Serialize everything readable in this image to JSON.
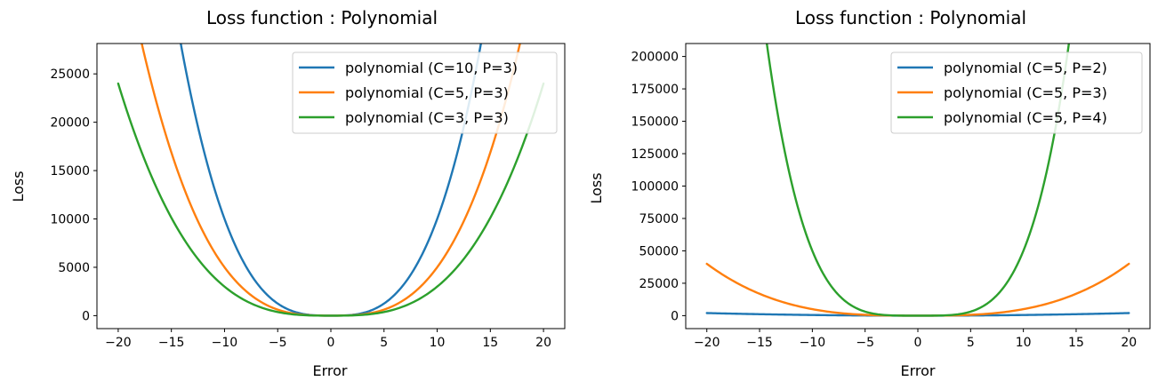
{
  "colors": {
    "blue": "#1f77b4",
    "orange": "#ff7f0e",
    "green": "#2ca02c"
  },
  "chart_data": [
    {
      "type": "line",
      "title": "Loss function : Polynomial",
      "xlabel": "Error",
      "ylabel": "Loss",
      "xlim": [
        -22,
        22
      ],
      "ylim": [
        -1340,
        28140
      ],
      "xticks": [
        -20,
        -15,
        -10,
        -5,
        0,
        5,
        10,
        15,
        20
      ],
      "xtick_labels": [
        "−20",
        "−15",
        "−10",
        "−5",
        "0",
        "5",
        "10",
        "15",
        "20"
      ],
      "yticks": [
        0,
        5000,
        10000,
        15000,
        20000,
        25000
      ],
      "ytick_labels": [
        "0",
        "5000",
        "10000",
        "15000",
        "20000",
        "25000"
      ],
      "grid": false,
      "legend_placement": "upper right",
      "x_range": [
        -20,
        20
      ],
      "series": [
        {
          "name": "polynomial (C=10, P=3)",
          "C": 10,
          "P": 3,
          "color": "#1f77b4"
        },
        {
          "name": "polynomial (C=5, P=3)",
          "C": 5,
          "P": 3,
          "color": "#ff7f0e"
        },
        {
          "name": "polynomial (C=3, P=3)",
          "C": 3,
          "P": 3,
          "color": "#2ca02c"
        }
      ]
    },
    {
      "type": "line",
      "title": "Loss function : Polynomial",
      "xlabel": "Error",
      "ylabel": "Loss",
      "xlim": [
        -22,
        22
      ],
      "ylim": [
        -10000,
        210000
      ],
      "xticks": [
        -20,
        -15,
        -10,
        -5,
        0,
        5,
        10,
        15,
        20
      ],
      "xtick_labels": [
        "−20",
        "−15",
        "−10",
        "−5",
        "0",
        "5",
        "10",
        "15",
        "20"
      ],
      "yticks": [
        0,
        25000,
        50000,
        75000,
        100000,
        125000,
        150000,
        175000,
        200000
      ],
      "ytick_labels": [
        "0",
        "25000",
        "50000",
        "75000",
        "100000",
        "125000",
        "150000",
        "175000",
        "200000"
      ],
      "grid": false,
      "legend_placement": "upper right",
      "x_range": [
        -20,
        20
      ],
      "series": [
        {
          "name": "polynomial (C=5, P=2)",
          "C": 5,
          "P": 2,
          "color": "#1f77b4"
        },
        {
          "name": "polynomial (C=5, P=3)",
          "C": 5,
          "P": 3,
          "color": "#ff7f0e"
        },
        {
          "name": "polynomial (C=5, P=4)",
          "C": 5,
          "P": 4,
          "color": "#2ca02c"
        }
      ]
    }
  ]
}
